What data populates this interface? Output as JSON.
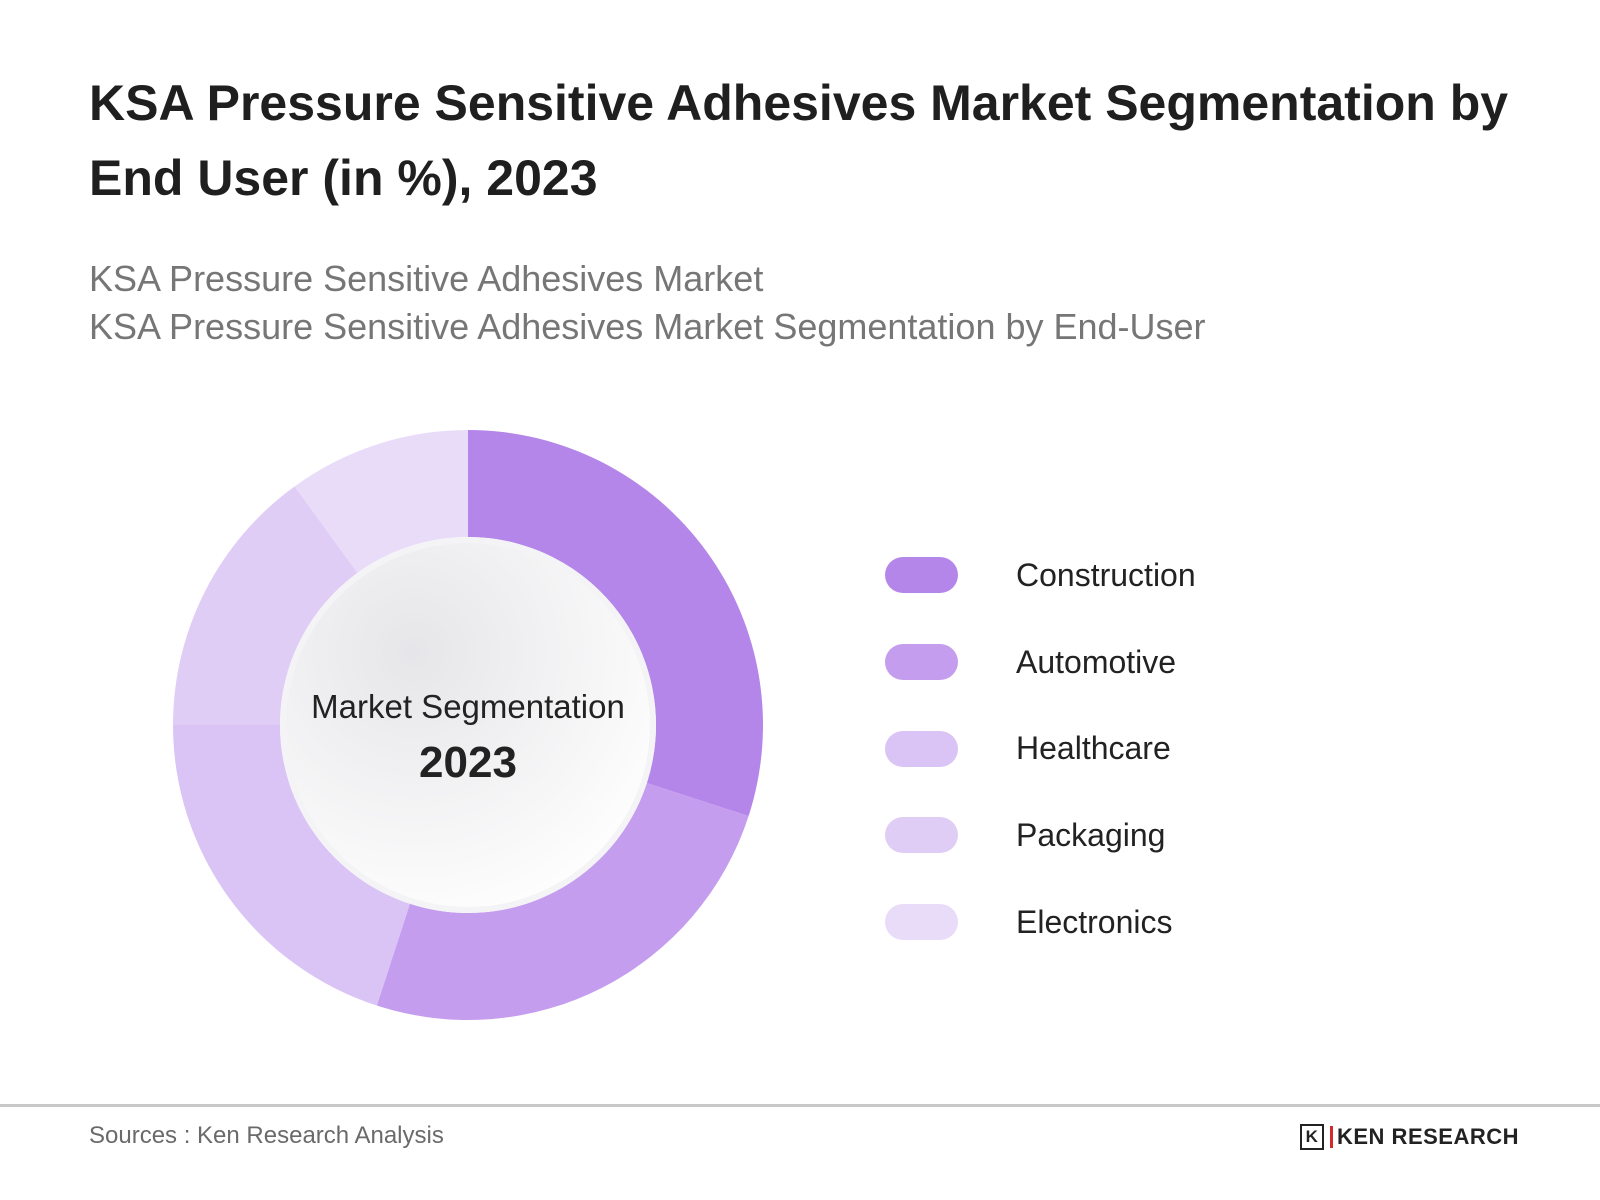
{
  "title": "KSA Pressure Sensitive Adhesives Market Segmentation by End User (in %), 2023",
  "subtitle_1": "KSA Pressure Sensitive Adhesives Market",
  "subtitle_2": "KSA Pressure Sensitive Adhesives Market Segmentation by End-User",
  "center": {
    "line1": "Market Segmentation",
    "line2": "2023"
  },
  "chart_data": {
    "type": "pie",
    "variant": "donut",
    "title": "KSA Pressure Sensitive Adhesives Market Segmentation by End User (in %), 2023",
    "categories": [
      "Construction",
      "Automotive",
      "Healthcare",
      "Packaging",
      "Electronics"
    ],
    "values": [
      30,
      25,
      20,
      15,
      10
    ],
    "colors": [
      "#b586ea",
      "#c59def",
      "#dac3f5",
      "#e0cdf6",
      "#e9dcf9"
    ],
    "legend": "right"
  },
  "footer": {
    "source": "Sources : Ken Research Analysis",
    "logo_text": "KEN RESEARCH",
    "logo_mark": "K"
  }
}
